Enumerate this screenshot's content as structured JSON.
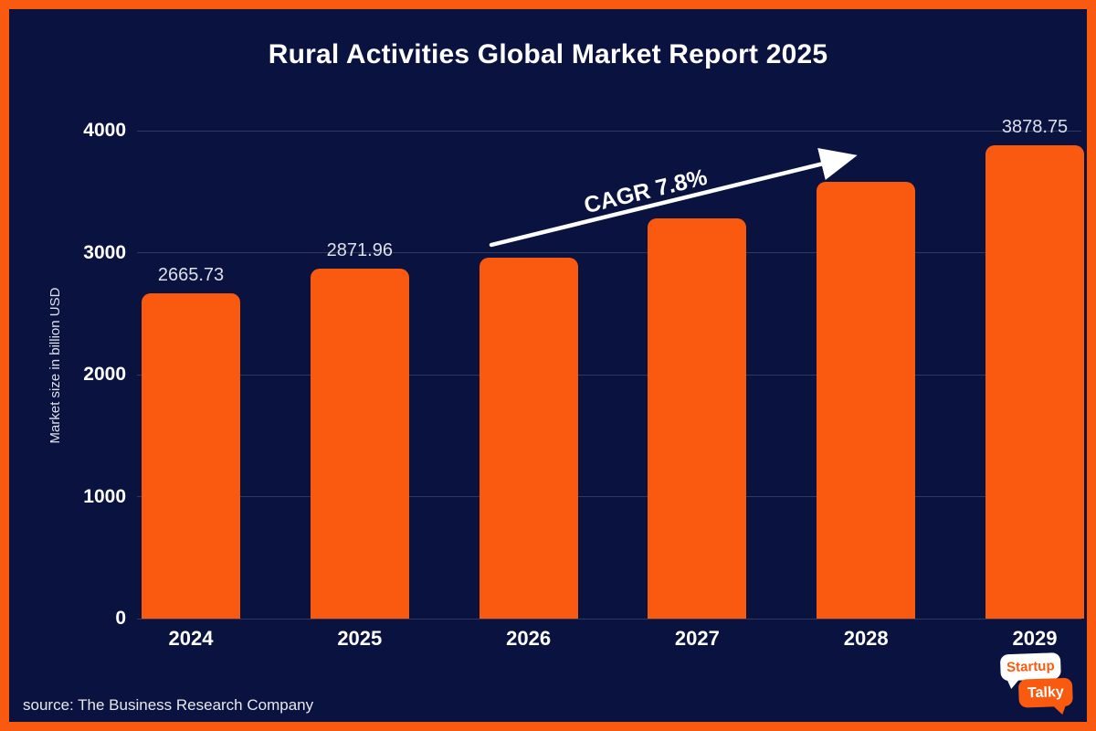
{
  "title": "Rural Activities Global Market Report 2025",
  "colors": {
    "frame": "#F95A10",
    "background": "#0A1240",
    "bar": "#F95A10",
    "grid": "rgba(255,255,255,0.16)",
    "text": "#FFFFFF",
    "value_label_text": "#DCE0E8"
  },
  "chart_data": {
    "type": "bar",
    "title": "Rural Activities Global Market Report 2025",
    "categories": [
      "2024",
      "2025",
      "2026",
      "2027",
      "2028",
      "2029"
    ],
    "values": [
      2665.73,
      2871.96,
      2960,
      3280,
      3580,
      3878.75
    ],
    "value_labels": [
      "2665.73",
      "2871.96",
      "",
      "",
      "",
      "3878.75"
    ],
    "unlabeled_values_estimated_from_gridlines": [
      "2026",
      "2027",
      "2028"
    ],
    "xlabel": "",
    "ylabel": "Market size in billion USD",
    "ylim": [
      0,
      4000
    ],
    "yticks": [
      0,
      1000,
      2000,
      3000,
      4000
    ],
    "grid": true,
    "legend": false,
    "annotation": {
      "text": "CAGR 7.8%",
      "style": "white arrow rising left-to-right above bars"
    }
  },
  "source": "source: The Business Research Company",
  "logo": {
    "line1": "Startup",
    "line2": "Talky"
  }
}
